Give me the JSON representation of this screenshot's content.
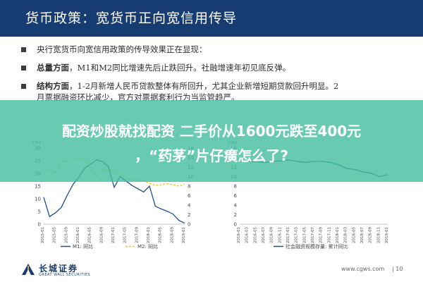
{
  "header": {
    "title": "货币政策：宽货币正向宽信用传导"
  },
  "bullets": [
    {
      "lead": "",
      "text": "央行宽货币向宽信用政策的传导效果正在显现："
    },
    {
      "lead": "总量方面",
      "text": "，M1和M2同比增速先后止跌回升。社融增速年初见底反弹。"
    },
    {
      "lead": "结构方面",
      "text": "，1-2月新增人民币贷款整体有所回升，尤其企业新增短期贷款回升明显。2",
      "cont": "月票据融资环比减少，官方对票据套利行为当监管趋严。"
    }
  ],
  "overlay": {
    "line1": "配资炒股就找配资 二手价从1600元跌至400元",
    "line2": "，“药茅”片仔癀怎么了?"
  },
  "chart_left": {
    "unit_left": "(%)",
    "legend": [
      "M1: 同比",
      "M2: 同比"
    ],
    "colors": {
      "m1": "#1f4e8c",
      "m2": "#f0c419"
    }
  },
  "chart_right": {
    "unit_left": "(%)",
    "legend": [
      "社会融资规模存量: 累计同比"
    ],
    "colors": {
      "tsf": "#1f4e8c"
    }
  },
  "chart_data": [
    {
      "type": "line",
      "x": [
        "2015-01",
        "2015-03",
        "2015-05",
        "2015-07",
        "2015-09",
        "2015-11",
        "2016-01",
        "2016-03",
        "2016-05",
        "2016-07",
        "2016-09",
        "2016-11",
        "2017-01",
        "2017-03",
        "2017-05",
        "2017-07",
        "2017-09",
        "2017-11",
        "2018-01",
        "2018-03",
        "2018-05",
        "2018-07",
        "2018-09",
        "2018-11",
        "2019-01"
      ],
      "xlabels": [
        "2015-01",
        "2015-05",
        "2015-09",
        "2016-01",
        "2016-05",
        "2016-09",
        "2017-01",
        "2017-05",
        "2017-09",
        "2018-01",
        "2018-05",
        "2018-09",
        "2019-01"
      ],
      "series": [
        {
          "name": "M1: 同比",
          "axis": "left",
          "values": [
            10.6,
            3.0,
            4.5,
            6.6,
            11.4,
            15.7,
            18.6,
            22.1,
            23.7,
            25.4,
            24.7,
            22.7,
            14.5,
            18.8,
            17.0,
            15.3,
            14.0,
            12.7,
            15.0,
            7.1,
            6.0,
            5.1,
            4.0,
            1.5,
            0.4
          ]
        },
        {
          "name": "M2: 同比",
          "axis": "right",
          "values": [
            10.8,
            11.6,
            10.8,
            13.3,
            13.1,
            13.7,
            14.0,
            13.4,
            11.8,
            10.2,
            11.5,
            11.4,
            11.3,
            10.6,
            9.6,
            9.2,
            9.2,
            9.1,
            8.6,
            8.2,
            8.3,
            8.5,
            8.3,
            8.0,
            8.4
          ]
        }
      ],
      "ylim_left": [
        0,
        30
      ],
      "yticks_left": [
        0,
        5,
        10,
        15,
        20,
        25,
        30
      ],
      "ylim_right": [
        0,
        16
      ],
      "yticks_right": [
        0,
        2,
        4,
        6,
        8,
        10,
        12,
        14,
        16
      ],
      "grid": false,
      "legend_position": "bottom"
    },
    {
      "type": "line",
      "x": [
        "2016-01",
        "2016-03",
        "2016-05",
        "2016-07",
        "2016-09",
        "2016-11",
        "2017-01",
        "2017-03",
        "2017-05",
        "2017-07",
        "2017-09",
        "2017-11",
        "2018-01",
        "2018-03",
        "2018-05",
        "2018-07",
        "2018-09",
        "2018-11",
        "2019-01"
      ],
      "xlabels": [
        "2016-01",
        "2016-03",
        "2016-05",
        "2016-07",
        "2016-09",
        "2016-11",
        "2017-01",
        "2017-03",
        "2017-05",
        "2017-07",
        "2017-09",
        "2017-11",
        "2018-01",
        "2018-03",
        "2018-05",
        "2018-07",
        "2018-09",
        "2018-11",
        "2019-01"
      ],
      "series": [
        {
          "name": "社会融资规模存量: 累计同比",
          "axis": "left",
          "values": [
            13.4,
            13.2,
            13.1,
            13.0,
            13.2,
            13.3,
            13.5,
            13.2,
            13.0,
            13.2,
            13.2,
            13.0,
            12.5,
            11.7,
            11.5,
            11.0,
            10.7,
            10.0,
            10.4
          ]
        }
      ],
      "ylim_left": [
        0,
        16
      ],
      "yticks_left": [
        0,
        2,
        4,
        6,
        8,
        10,
        12,
        14,
        16
      ],
      "grid": false,
      "legend_position": "bottom"
    }
  ],
  "footer": {
    "logo_cn": "长城证券",
    "logo_en": "GREAT WALL SECURITIES",
    "watermark": "www.cgws.com",
    "page": "| 10"
  }
}
